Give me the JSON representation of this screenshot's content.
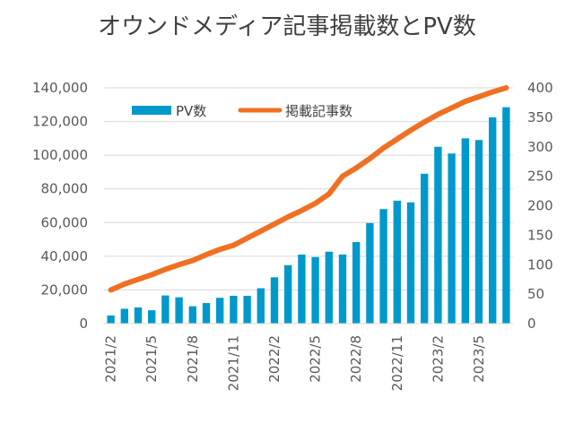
{
  "chart_data": {
    "type": "bar",
    "title": "オウンドメディア記事掲載数とPV数",
    "legend_position": "top-left",
    "grid": true,
    "categories": [
      "2021/2",
      "2021/3",
      "2021/4",
      "2021/5",
      "2021/6",
      "2021/7",
      "2021/8",
      "2021/9",
      "2021/10",
      "2021/11",
      "2021/12",
      "2022/1",
      "2022/2",
      "2022/3",
      "2022/4",
      "2022/5",
      "2022/6",
      "2022/7",
      "2022/8",
      "2022/9",
      "2022/10",
      "2022/11",
      "2022/12",
      "2023/1",
      "2023/2",
      "2023/3",
      "2023/4",
      "2023/5",
      "2023/6",
      "2023/7"
    ],
    "x_tick_labels": [
      "2021/2",
      "2021/5",
      "2021/8",
      "2021/11",
      "2022/2",
      "2022/5",
      "2022/8",
      "2022/11",
      "2023/2",
      "2023/5"
    ],
    "x_tick_every": 3,
    "y_left": {
      "range": [
        0,
        140000
      ],
      "tick_labels": [
        "0",
        "20,000",
        "40,000",
        "60,000",
        "80,000",
        "100,000",
        "120,000",
        "140,000"
      ]
    },
    "y_right": {
      "range": [
        0,
        400
      ],
      "tick_labels": [
        "0",
        "50",
        "100",
        "150",
        "200",
        "250",
        "300",
        "350",
        "400"
      ]
    },
    "series": [
      {
        "name": "PV数",
        "type": "bar",
        "axis": "left",
        "color": "#0099cc",
        "values": [
          4800,
          8800,
          9600,
          7900,
          16700,
          15600,
          10300,
          12200,
          15300,
          16500,
          16500,
          21000,
          27500,
          34700,
          41000,
          39500,
          42700,
          41000,
          48400,
          59700,
          68000,
          73000,
          72000,
          89000,
          105000,
          101000,
          110000,
          109000,
          122500,
          128500
        ]
      },
      {
        "name": "掲載記事数",
        "type": "line",
        "axis": "right",
        "color": "#f07023",
        "values": [
          57,
          67,
          75,
          83,
          92,
          100,
          107,
          117,
          126,
          133,
          145,
          157,
          169,
          181,
          192,
          204,
          220,
          250,
          264,
          280,
          298,
          313,
          328,
          342,
          355,
          366,
          377,
          385,
          393,
          400
        ]
      }
    ]
  }
}
